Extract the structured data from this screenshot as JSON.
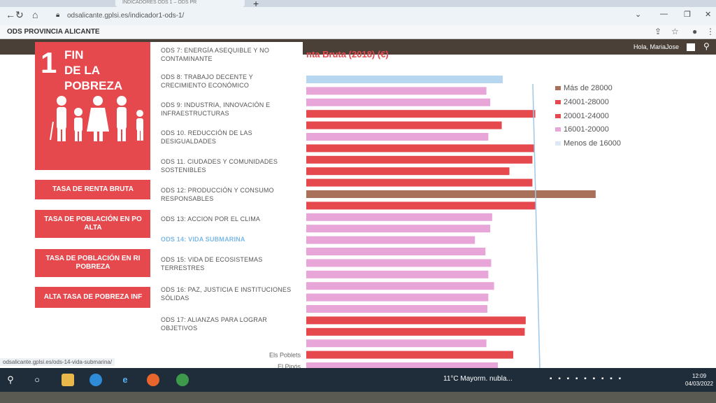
{
  "browser": {
    "tab_title": "INDICADORES ODS 1 – ODS PR",
    "tab_close": "✕",
    "new_tab": "+",
    "url": "odsalicante.gplsi.es/indicador1-ods-1/",
    "status_url": "odsalicante.gplsi.es/ods-14-vida-submarina/"
  },
  "site": {
    "name": "ODS PROVINCIA ALICANTE",
    "greeting": "Hola, MariaJose"
  },
  "goal": {
    "number": "1",
    "title_line1": "FIN",
    "title_line2": "DE LA POBREZA"
  },
  "side_buttons": [
    "TASA DE RENTA BRUTA",
    "TASA DE POBLACIÓN EN PO ALTA",
    "TASA DE POBLACIÓN EN RI POBREZA",
    "ALTA TASA DE POBREZA INF"
  ],
  "ods_menu": [
    "ODS 7: ENERGÍA ASEQUIBLE Y NO CONTAMINANTE",
    "ODS 8: TRABAJO DECENTE Y CRECIMIENTO ECONÓMICO",
    "ODS 9: INDUSTRIA, INNOVACIÓN E INFRAESTRUCTURAS",
    "ODS 10. REDUCCIÓN DE LAS DESIGUALDADES",
    "ODS 11. CIUDADES Y COMUNIDADES SOSTENIBLES",
    "ODS 12: PRODUCCIÓN Y CONSUMO RESPONSABLES",
    "ODS 13: ACCION POR EL CLIMA",
    "ODS 14: VIDA SUBMARINA",
    "ODS 15: VIDA DE ECOSISTEMAS TERRESTRES",
    "ODS 16: PAZ, JUSTICIA E INSTITUCIONES SÓLIDAS",
    "ODS 17: ALIANZAS PARA LOGRAR OBJETIVOS"
  ],
  "active_menu_index": 7,
  "chart_data": {
    "type": "bar",
    "title": "nta Bruta (2018) (€)",
    "orientation": "horizontal",
    "categories": [
      "",
      "",
      "",
      "",
      "",
      "",
      "",
      "",
      "",
      "",
      "",
      "",
      "",
      "",
      "",
      "",
      "",
      "",
      "",
      "",
      "",
      "",
      "",
      "",
      "Els Poblets",
      "El Pinós"
    ],
    "values": [
      20500,
      18800,
      19200,
      23900,
      20400,
      19000,
      23800,
      23600,
      21200,
      23600,
      30200,
      23900,
      19400,
      19200,
      17600,
      18700,
      19300,
      19000,
      19600,
      19000,
      18900,
      22900,
      22800,
      18800,
      21600,
      20000
    ],
    "bar_colors": [
      "#b7d6f0",
      "#e8a6d8",
      "#e8a6d8",
      "#e5484d",
      "#e5484d",
      "#e8a6d8",
      "#e5484d",
      "#e5484d",
      "#e5484d",
      "#e5484d",
      "#a9705a",
      "#e5484d",
      "#e8a6d8",
      "#e8a6d8",
      "#e8a6d8",
      "#e8a6d8",
      "#e8a6d8",
      "#e8a6d8",
      "#e8a6d8",
      "#e8a6d8",
      "#e8a6d8",
      "#e5484d",
      "#e5484d",
      "#e8a6d8",
      "#e5484d",
      "#e8a6d8"
    ],
    "legend": [
      {
        "label": "Más de 28000",
        "color": "#a9705a"
      },
      {
        "label": "24001-28000",
        "color": "#e5484d"
      },
      {
        "label": "20001-24000",
        "color": "#e5484d"
      },
      {
        "label": "16001-20000",
        "color": "#e8a6d8"
      },
      {
        "label": "Menos de 16000",
        "color": "#dde8f5"
      }
    ],
    "legend_position": "right"
  },
  "taskbar": {
    "weather": "11°C  Mayorm. nubla...",
    "time": "12:09",
    "date": "04/03/2022"
  },
  "icons": [
    "search-icon",
    "task-view-icon",
    "file-explorer-icon",
    "edge-icon",
    "ie-icon",
    "firefox-icon",
    "chrome-icon"
  ]
}
